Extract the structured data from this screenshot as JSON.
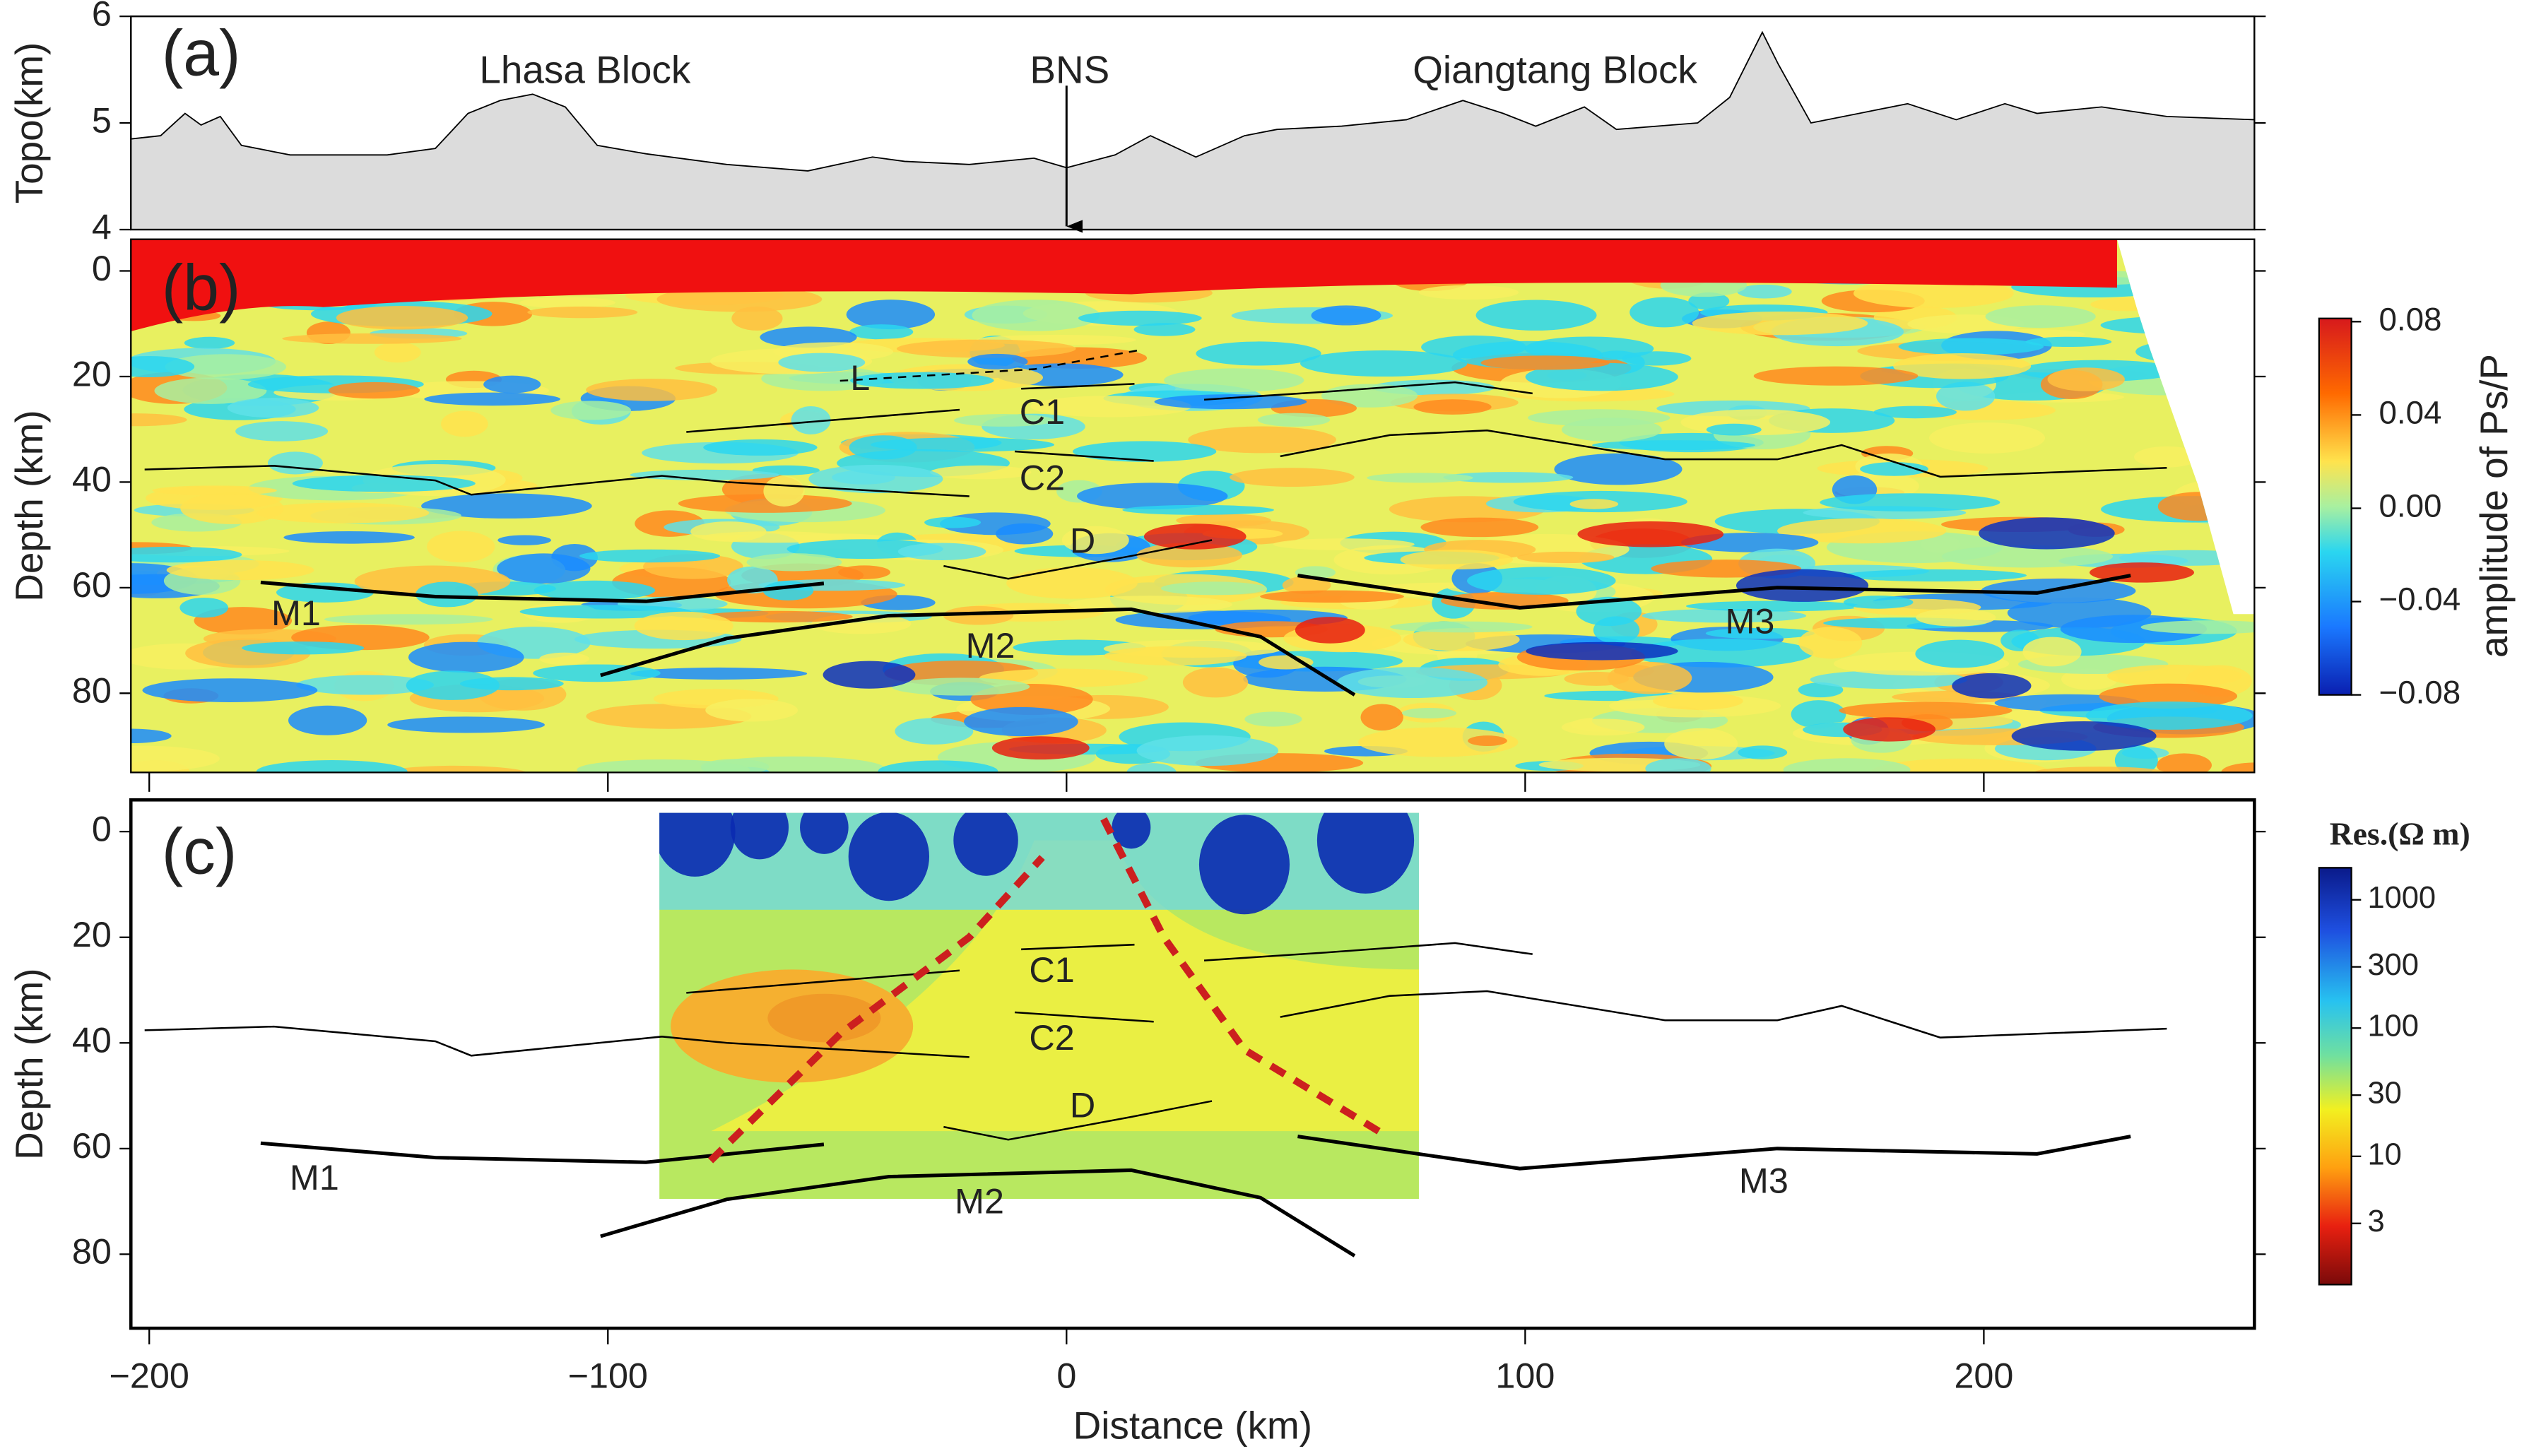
{
  "chart_data": [
    {
      "type": "area",
      "panel_label": "(a)",
      "y_label": "Topo(km)",
      "x": [
        -204,
        -197.5,
        -192.2,
        -188.7,
        -184.5,
        -179.9,
        -169.3,
        -148.1,
        -137.6,
        -130.5,
        -123.5,
        -116.4,
        -109.3,
        -102.3,
        -91.7,
        -74.1,
        -56.4,
        -42.3,
        -35.3,
        -21.2,
        -7.1,
        0,
        10.6,
        18.3,
        28.2,
        38.8,
        45.9,
        60,
        74.1,
        86.4,
        95.2,
        102.3,
        112.9,
        119.9,
        137.6,
        144.6,
        151.7,
        155.2,
        162.3,
        172.8,
        183.4,
        194,
        204.6,
        211.6,
        225.7,
        239.9,
        259
      ],
      "values": [
        4.85,
        4.88,
        5.09,
        4.98,
        5.06,
        4.79,
        4.7,
        4.7,
        4.76,
        5.09,
        5.21,
        5.27,
        5.15,
        4.79,
        4.71,
        4.61,
        4.55,
        4.68,
        4.64,
        4.61,
        4.67,
        4.58,
        4.7,
        4.88,
        4.68,
        4.88,
        4.94,
        4.97,
        5.03,
        5.21,
        5.09,
        4.97,
        5.15,
        4.94,
        5.0,
        5.24,
        5.85,
        5.55,
        5.0,
        5.09,
        5.18,
        5.03,
        5.18,
        5.09,
        5.15,
        5.06,
        5.03
      ],
      "color": "#dcdcdc",
      "xlim": [
        -204,
        259
      ],
      "ylim": [
        4,
        6
      ],
      "yticks": [
        4,
        5,
        6
      ],
      "annotations": [
        {
          "text": "Lhasa Block",
          "x": -105,
          "y": 5.47
        },
        {
          "text": "BNS",
          "x": 0.7,
          "y": 5.47
        },
        {
          "text": "Qiangtang Block",
          "x": 106.5,
          "y": 5.47
        }
      ],
      "arrow": {
        "x": 0,
        "y": [
          5.35,
          4
        ]
      }
    },
    {
      "type": "heatmap",
      "panel_label": "(b)",
      "y_label": "Depth (km)",
      "xlim": [
        -204,
        259
      ],
      "ylim": [
        95,
        -6
      ],
      "yticks": [
        0,
        20,
        40,
        60,
        80
      ],
      "colorbar": {
        "label": "amplitude of Ps/P",
        "lim": [
          -0.08,
          0.08
        ],
        "ticks": [
          0.08,
          0.04,
          {
            "value": 0,
            "label": "0.00"
          },
          {
            "value": -0.04,
            "label": "−0.04"
          },
          {
            "value": -0.08,
            "label": "−0.08"
          }
        ]
      },
      "interfaces": [
        {
          "style": "thick",
          "x": [
            -175.7,
            -137.6,
            -91.7,
            -52.9
          ],
          "depth": [
            59,
            61.7,
            62.6,
            59.2
          ]
        },
        {
          "style": "thick",
          "x": [
            -101.6,
            -74,
            -38.8,
            14.1,
            42.3,
            62.8
          ],
          "depth": [
            76.6,
            69.6,
            65.3,
            64.1,
            69.3,
            80.3
          ]
        },
        {
          "style": "thick",
          "x": [
            50.4,
            98.8,
            155,
            211.6,
            232
          ],
          "depth": [
            57.7,
            63.8,
            60,
            61,
            57.7
          ]
        },
        {
          "style": "thin",
          "x": [
            -9.9,
            14.8
          ],
          "depth": [
            22.3,
            21.4
          ]
        },
        {
          "style": "thin",
          "x": [
            -82.9,
            -23.3
          ],
          "depth": [
            30.5,
            26.3
          ]
        },
        {
          "style": "thin",
          "x": [
            30,
            56.4,
            84.7,
            101.6
          ],
          "depth": [
            24.4,
            22.9,
            21.1,
            23.2
          ]
        },
        {
          "style": "thin",
          "x": [
            -11.3,
            19
          ],
          "depth": [
            34.2,
            36
          ]
        },
        {
          "style": "thin",
          "x": [
            -201,
            -172.8,
            -137.6,
            -129.8,
            -88.2,
            -74,
            -21.2
          ],
          "depth": [
            37.6,
            36.9,
            39.7,
            42.4,
            38.8,
            40,
            42.7
          ]
        },
        {
          "style": "thin",
          "x": [
            46.6,
            70.5,
            91.7,
            130.5,
            155,
            169,
            190.5,
            239.9
          ],
          "depth": [
            35.1,
            31.1,
            30.2,
            35.7,
            35.7,
            33,
            39,
            37.3
          ]
        },
        {
          "style": "thin",
          "x": [
            -26.8,
            -12.7,
            14.1,
            31.7
          ],
          "depth": [
            55.9,
            58.3,
            54,
            51
          ]
        },
        {
          "style": "dashed",
          "x": [
            -49.4,
            -7,
            15.9
          ],
          "depth": [
            20.8,
            18.6,
            15
          ]
        }
      ],
      "labels": [
        {
          "text": "L",
          "x": -45,
          "y": 20.8
        },
        {
          "text": "C1",
          "x": -5.3,
          "y": 27.2
        },
        {
          "text": "C2",
          "x": -5.3,
          "y": 39.7
        },
        {
          "text": "D",
          "x": 3.5,
          "y": 51.6
        },
        {
          "text": "M1",
          "x": -168,
          "y": 65.3
        },
        {
          "text": "M2",
          "x": -16.6,
          "y": 71.5
        },
        {
          "text": "M3",
          "x": 149,
          "y": 66.9
        }
      ]
    },
    {
      "type": "heatmap",
      "panel_label": "(c)",
      "y_label": "Depth (km)",
      "x_label": "Distance (km)",
      "xlim": [
        -204,
        259
      ],
      "ylim": [
        94,
        -6
      ],
      "yticks": [
        0,
        20,
        40,
        60,
        80
      ],
      "xticks": [
        {
          "value": -200,
          "label": "−200"
        },
        {
          "value": -100,
          "label": "−100"
        },
        0,
        100,
        200
      ],
      "colorbar": {
        "title": "Res.(Ω  m)",
        "log": true,
        "lim": [
          1,
          1778
        ],
        "ticks": [
          1000,
          300,
          100,
          30,
          10,
          3
        ]
      },
      "faults": [
        {
          "color": "#cc1f1f",
          "x": [
            -77.6,
            -49.4,
            -21.2,
            -5.3
          ],
          "depth": [
            62.3,
            38.3,
            20,
            4.9
          ]
        },
        {
          "color": "#cc1f1f",
          "x": [
            8.1,
            21.2,
            38.8,
            68.8
          ],
          "depth": [
            -2.4,
            20,
            41.3,
            57.1
          ]
        }
      ],
      "labels": [
        {
          "text": "C1",
          "x": -3.2,
          "y": 26.7
        },
        {
          "text": "C2",
          "x": -3.2,
          "y": 39.5
        },
        {
          "text": "D",
          "x": 3.5,
          "y": 52.3
        },
        {
          "text": "M1",
          "x": -164,
          "y": 66
        },
        {
          "text": "M2",
          "x": -19,
          "y": 70.5
        },
        {
          "text": "M3",
          "x": 152,
          "y": 66.6
        }
      ]
    }
  ]
}
